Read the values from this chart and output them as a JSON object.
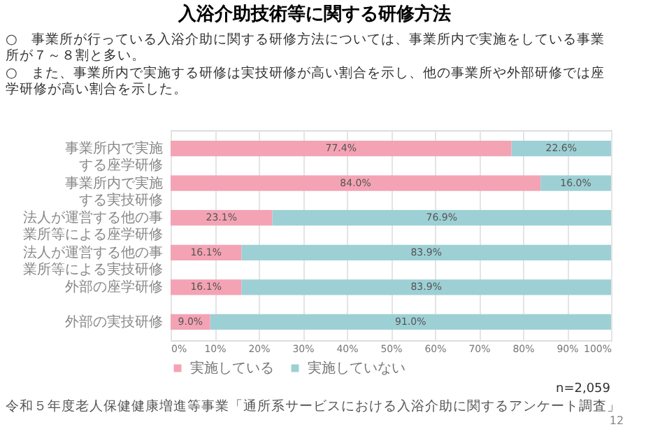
{
  "chart_data": {
    "type": "bar",
    "orientation": "horizontal",
    "stacked": true,
    "title": "入浴介助技術等に関する研修方法",
    "categories": [
      "事業所内で実施する座学研修",
      "事業所内で実施する実技研修",
      "法人が運営する他の事業所等による座学研修",
      "法人が運営する他の事業所等による実技研修",
      "外部の座学研修",
      "外部の実技研修"
    ],
    "series": [
      {
        "name": "実施している",
        "color": "#f4a3b4",
        "values": [
          77.4,
          84.0,
          23.1,
          16.1,
          16.1,
          9.0
        ],
        "value_labels": [
          "77.4%",
          "84.0%",
          "23.1%",
          "16.1%",
          "16.1%",
          "9.0%"
        ]
      },
      {
        "name": "実施していない",
        "color": "#9dd0d4",
        "values": [
          22.6,
          16.0,
          76.9,
          83.9,
          83.9,
          91.0
        ],
        "value_labels": [
          "22.6%",
          "16.0%",
          "76.9%",
          "83.9%",
          "83.9%",
          "91.0%"
        ]
      }
    ],
    "xlim": [
      0,
      100
    ],
    "xticks": [
      {
        "value": 0,
        "label": "0%"
      },
      {
        "value": 10,
        "label": "10%"
      },
      {
        "value": 20,
        "label": "20%"
      },
      {
        "value": 30,
        "label": "30%"
      },
      {
        "value": 40,
        "label": "40%"
      },
      {
        "value": 50,
        "label": "50%"
      },
      {
        "value": 60,
        "label": "60%"
      },
      {
        "value": 70,
        "label": "70%"
      },
      {
        "value": 80,
        "label": "80%"
      },
      {
        "value": 90,
        "label": "90%"
      },
      {
        "value": 100,
        "label": "100%"
      }
    ],
    "grid": "x",
    "legend": "bottom",
    "annotations": [
      "○　事業所が行っている入浴介助に関する研修方法については、事業所内で実施をしている事業所が７～８割と多い。",
      "○　また、事業所内で実施する研修は実技研修が高い割合を示し、他の事業所や外部研修では座学研修が高い割合を示した。",
      "n=2,059",
      "令和５年度老人保健健康増進等事業「通所系サービスにおける入浴介助に関するアンケート調査」",
      "12"
    ]
  }
}
